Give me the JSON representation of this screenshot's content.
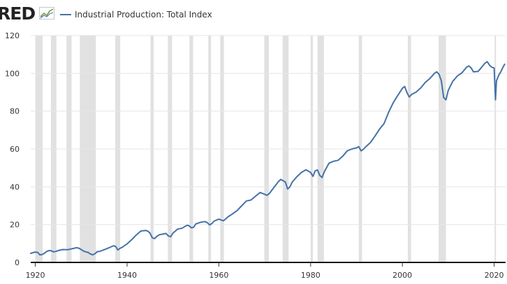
{
  "header": {
    "logo_text": "RED",
    "logo_icon": "chart-line-icon",
    "legend_label": "Industrial Production: Total Index",
    "line_color": "#4572a7"
  },
  "chart_data": {
    "type": "line",
    "title": "",
    "xlabel": "",
    "ylabel": "",
    "xlim": [
      1919,
      2022.5
    ],
    "ylim": [
      0,
      120
    ],
    "grid": true,
    "legend_position": "top-left",
    "yticks": [
      0,
      20,
      40,
      60,
      80,
      100,
      120
    ],
    "xticks": [
      1920,
      1940,
      1960,
      1980,
      2000,
      2020
    ],
    "x_tick_labels": [
      "1920",
      "1940",
      "1960",
      "1980",
      "2000",
      "2020"
    ],
    "y_tick_labels": [
      "0",
      "20",
      "40",
      "60",
      "80",
      "100",
      "120"
    ],
    "recessions": [
      [
        1920.0,
        1921.6
      ],
      [
        1923.4,
        1924.6
      ],
      [
        1926.8,
        1927.9
      ],
      [
        1929.7,
        1933.2
      ],
      [
        1937.4,
        1938.5
      ],
      [
        1945.1,
        1945.8
      ],
      [
        1948.9,
        1949.8
      ],
      [
        1953.6,
        1954.4
      ],
      [
        1957.7,
        1958.3
      ],
      [
        1960.3,
        1961.1
      ],
      [
        1969.9,
        1970.9
      ],
      [
        1973.9,
        1975.2
      ],
      [
        1980.0,
        1980.5
      ],
      [
        1981.5,
        1982.9
      ],
      [
        1990.5,
        1991.2
      ],
      [
        2001.2,
        2001.9
      ],
      [
        2007.9,
        2009.5
      ],
      [
        2020.1,
        2020.4
      ]
    ],
    "series": [
      {
        "name": "Industrial Production: Total Index",
        "color": "#4572a7",
        "x": [
          1919.0,
          1919.5,
          1920.0,
          1920.5,
          1921.0,
          1921.5,
          1922.0,
          1922.5,
          1923.0,
          1923.5,
          1924.0,
          1924.5,
          1925.0,
          1926.0,
          1927.0,
          1928.0,
          1929.0,
          1929.5,
          1930.0,
          1930.5,
          1931.0,
          1931.5,
          1932.0,
          1932.5,
          1933.0,
          1933.5,
          1934.0,
          1935.0,
          1936.0,
          1937.0,
          1937.5,
          1938.0,
          1938.5,
          1939.0,
          1939.5,
          1940.0,
          1941.0,
          1942.0,
          1943.0,
          1944.0,
          1944.5,
          1945.0,
          1945.5,
          1946.0,
          1946.5,
          1947.0,
          1948.0,
          1948.5,
          1949.0,
          1949.5,
          1950.0,
          1951.0,
          1952.0,
          1953.0,
          1953.5,
          1954.0,
          1954.5,
          1955.0,
          1956.0,
          1957.0,
          1957.5,
          1958.0,
          1958.5,
          1959.0,
          1960.0,
          1960.5,
          1961.0,
          1962.0,
          1963.0,
          1964.0,
          1965.0,
          1966.0,
          1967.0,
          1968.0,
          1969.0,
          1970.0,
          1970.5,
          1971.0,
          1972.0,
          1973.0,
          1973.5,
          1974.0,
          1974.5,
          1975.0,
          1975.5,
          1976.0,
          1977.0,
          1978.0,
          1979.0,
          1980.0,
          1980.5,
          1981.0,
          1981.5,
          1982.0,
          1982.5,
          1983.0,
          1984.0,
          1985.0,
          1986.0,
          1987.0,
          1988.0,
          1989.0,
          1990.0,
          1990.5,
          1991.0,
          1991.5,
          1992.0,
          1993.0,
          1994.0,
          1995.0,
          1996.0,
          1997.0,
          1998.0,
          1999.0,
          2000.0,
          2000.5,
          2001.0,
          2001.5,
          2002.0,
          2003.0,
          2004.0,
          2005.0,
          2006.0,
          2007.0,
          2007.5,
          2008.0,
          2008.5,
          2009.0,
          2009.5,
          2010.0,
          2011.0,
          2012.0,
          2013.0,
          2014.0,
          2014.5,
          2015.0,
          2015.5,
          2016.0,
          2016.5,
          2017.0,
          2018.0,
          2018.5,
          2019.0,
          2019.5,
          2020.0,
          2020.3,
          2020.5,
          2021.0,
          2021.5,
          2022.0,
          2022.3
        ],
        "values": [
          4.8,
          5.2,
          5.5,
          5.3,
          4.0,
          4.2,
          4.9,
          5.8,
          6.3,
          6.1,
          5.6,
          5.8,
          6.3,
          6.8,
          6.7,
          7.2,
          7.8,
          7.5,
          6.8,
          6.0,
          5.6,
          5.3,
          4.5,
          4.0,
          4.6,
          5.7,
          5.8,
          6.7,
          7.7,
          8.8,
          8.5,
          6.6,
          7.5,
          8.1,
          9.0,
          9.8,
          12.0,
          14.5,
          16.6,
          16.9,
          16.6,
          15.5,
          13.0,
          12.6,
          13.8,
          14.6,
          15.1,
          15.3,
          14.0,
          13.6,
          15.5,
          17.6,
          18.1,
          19.6,
          19.4,
          18.3,
          18.6,
          20.4,
          21.2,
          21.6,
          21.0,
          19.8,
          20.6,
          21.9,
          22.9,
          22.4,
          22.0,
          24.1,
          25.7,
          27.5,
          30.0,
          32.5,
          33.0,
          35.0,
          37.0,
          36.0,
          35.5,
          36.4,
          39.6,
          42.8,
          43.9,
          43.2,
          42.5,
          38.8,
          40.0,
          42.5,
          45.3,
          47.6,
          49.0,
          47.6,
          45.5,
          48.4,
          48.9,
          46.0,
          44.9,
          48.0,
          52.5,
          53.5,
          54.0,
          56.2,
          59.0,
          60.0,
          60.6,
          61.2,
          59.0,
          59.8,
          61.1,
          63.3,
          66.7,
          70.4,
          73.4,
          79.4,
          84.4,
          88.3,
          92.1,
          93.0,
          89.8,
          87.5,
          88.8,
          90.1,
          92.3,
          95.2,
          97.3,
          100.0,
          100.8,
          99.5,
          96.0,
          87.2,
          86.0,
          91.0,
          95.8,
          98.6,
          100.3,
          103.3,
          103.9,
          102.8,
          100.8,
          100.9,
          101.0,
          102.4,
          105.3,
          106.2,
          104.3,
          103.2,
          102.8,
          86.0,
          96.0,
          99.0,
          101.0,
          103.6,
          104.8
        ]
      }
    ]
  }
}
